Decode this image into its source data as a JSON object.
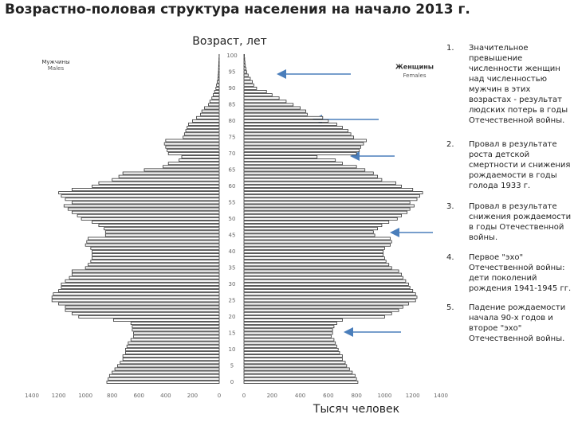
{
  "chart_data": {
    "type": "pyramid",
    "title": "Возрастно-половая структура населения на начало 2013 г.",
    "y_label": "Возраст, лет",
    "x_label": "Тысяч человек",
    "categories": [
      0,
      null,
      null,
      null,
      null,
      5,
      null,
      null,
      null,
      null,
      10,
      null,
      null,
      null,
      null,
      15,
      null,
      null,
      null,
      null,
      20,
      null,
      null,
      null,
      null,
      25,
      null,
      null,
      null,
      null,
      30,
      null,
      null,
      null,
      null,
      35,
      null,
      null,
      null,
      null,
      40,
      null,
      null,
      null,
      null,
      45,
      null,
      null,
      null,
      null,
      50,
      null,
      null,
      null,
      null,
      55,
      null,
      null,
      null,
      null,
      60,
      null,
      null,
      null,
      null,
      65,
      null,
      null,
      null,
      null,
      70,
      null,
      null,
      null,
      null,
      75,
      null,
      null,
      null,
      null,
      80,
      null,
      null,
      null,
      null,
      85,
      null,
      null,
      null,
      null,
      90,
      null,
      null,
      null,
      null,
      95,
      null,
      null,
      null,
      null,
      100
    ],
    "xlim": [
      0,
      1400
    ],
    "xticks": [
      0,
      200,
      400,
      600,
      800,
      1000,
      1200,
      1400
    ],
    "series": [
      {
        "name": "Мужчины",
        "name_en": "Males",
        "side": "left",
        "color": "#ffffff",
        "values": [
          840,
          830,
          820,
          800,
          780,
          760,
          740,
          720,
          720,
          700,
          700,
          690,
          680,
          660,
          640,
          640,
          650,
          650,
          660,
          790,
          1050,
          1100,
          1150,
          1150,
          1200,
          1250,
          1250,
          1240,
          1200,
          1180,
          1180,
          1150,
          1120,
          1100,
          1100,
          1000,
          980,
          960,
          950,
          950,
          950,
          960,
          1000,
          990,
          980,
          850,
          850,
          860,
          900,
          950,
          1030,
          1060,
          1100,
          1130,
          1160,
          1100,
          1150,
          1180,
          1200,
          1100,
          950,
          900,
          800,
          750,
          720,
          560,
          420,
          380,
          300,
          280,
          380,
          390,
          400,
          410,
          400,
          270,
          260,
          250,
          240,
          230,
          200,
          170,
          140,
          130,
          110,
          80,
          70,
          55,
          45,
          35,
          25,
          20,
          15,
          10,
          8,
          6,
          5,
          4,
          3,
          2,
          1
        ]
      },
      {
        "name": "Женщины",
        "name_en": "Females",
        "side": "right",
        "color": "#ffffff",
        "values": [
          810,
          800,
          790,
          770,
          750,
          730,
          720,
          700,
          700,
          680,
          670,
          660,
          650,
          640,
          620,
          630,
          630,
          640,
          660,
          700,
          1000,
          1050,
          1100,
          1130,
          1170,
          1220,
          1230,
          1220,
          1200,
          1180,
          1170,
          1150,
          1130,
          1120,
          1100,
          1050,
          1030,
          1010,
          1000,
          990,
          990,
          1000,
          1040,
          1050,
          1040,
          930,
          920,
          950,
          980,
          1030,
          1090,
          1120,
          1160,
          1180,
          1210,
          1180,
          1230,
          1250,
          1270,
          1200,
          1120,
          1080,
          980,
          950,
          920,
          860,
          800,
          700,
          650,
          520,
          800,
          820,
          830,
          850,
          870,
          780,
          760,
          740,
          700,
          660,
          600,
          560,
          450,
          440,
          400,
          350,
          300,
          250,
          200,
          160,
          90,
          70,
          60,
          45,
          30,
          20,
          15,
          10,
          7,
          5,
          3
        ]
      }
    ],
    "annotations": [
      {
        "number": "1.",
        "text": "Значительное превышение численности женщин над численностью мужчин в этих возрастах - результат людских потерь в годы Отечественной войны."
      },
      {
        "number": "2.",
        "text": "Провал в результате роста детской смертности и снижения рождаемости в годы голода 1933 г."
      },
      {
        "number": "3.",
        "text": "Провал в результате снижения рождаемости в годы Отечественной войны."
      },
      {
        "number": "4.",
        "text": "Первое \"эхо\" Отечественной войны: дети поколений рождения 1941-1945 гг."
      },
      {
        "number": "5.",
        "text": "Падение рождаемости начала 90-х годов и второе \"эхо\" Отечественной войны."
      }
    ]
  }
}
